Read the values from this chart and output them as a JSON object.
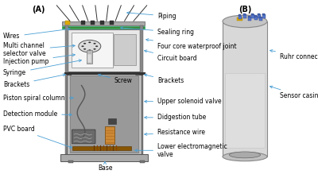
{
  "panel_a_label": "(A)",
  "panel_b_label": "(B)",
  "bg_color": "#ffffff",
  "arrow_color": "#4a9fd4",
  "text_color": "#000000",
  "font_size": 5.5,
  "base_label": "Base"
}
